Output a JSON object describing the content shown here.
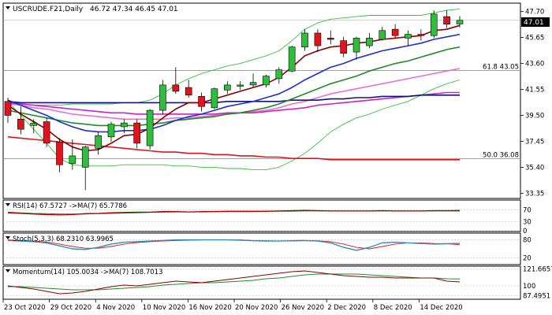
{
  "header": {
    "symbol": "USCRUDE.F21,Daily",
    "ohlc_text": "46.72 47.34 46.45 47.01",
    "last_price": "47.01"
  },
  "colors": {
    "bull": "#2bbf3a",
    "bear": "#e0141e",
    "ma_fast": "#8b0000",
    "ma_blue": "#1c2fd6",
    "ma_green": "#1f8a2a",
    "ma_pink": "#e870d0",
    "ma_navy": "#141478",
    "ma_magenta": "#d020c0",
    "ma_red": "#e0141e",
    "bollinger": "#36c23e",
    "hline": "#808080",
    "rsi": "#b00000",
    "rsi_ma": "#1f8a2a",
    "stoch_main": "#2a8fb8",
    "stoch_signal": "#e0141e",
    "mom": "#8b0000",
    "mom_ma": "#1f8a2a"
  },
  "chart_data": {
    "type": "candlestick",
    "title": "USCRUDE.F21,Daily",
    "y_ticks": [
      "47.70",
      "45.65",
      "43.60",
      "41.55",
      "39.50",
      "37.45",
      "35.40",
      "33.35"
    ],
    "x_ticks": [
      "23 Oct 2020",
      "29 Oct 2020",
      "4 Nov 2020",
      "10 Nov 2020",
      "16 Nov 2020",
      "20 Nov 2020",
      "26 Nov 2020",
      "2 Dec 2020",
      "8 Dec 2020",
      "14 Dec 2020"
    ],
    "ylim": [
      33.0,
      48.3
    ],
    "candles": [
      {
        "o": 40.6,
        "h": 40.9,
        "l": 38.9,
        "c": 39.5
      },
      {
        "o": 39.2,
        "h": 40.2,
        "l": 38.0,
        "c": 38.4
      },
      {
        "o": 38.7,
        "h": 39.2,
        "l": 38.1,
        "c": 38.9
      },
      {
        "o": 39.0,
        "h": 39.3,
        "l": 37.0,
        "c": 37.3
      },
      {
        "o": 37.4,
        "h": 37.7,
        "l": 35.0,
        "c": 35.6
      },
      {
        "o": 35.7,
        "h": 37.6,
        "l": 35.2,
        "c": 36.3
      },
      {
        "o": 35.4,
        "h": 37.1,
        "l": 33.6,
        "c": 37.0
      },
      {
        "o": 36.9,
        "h": 38.2,
        "l": 36.4,
        "c": 37.9
      },
      {
        "o": 37.8,
        "h": 39.0,
        "l": 37.4,
        "c": 38.8
      },
      {
        "o": 38.6,
        "h": 39.2,
        "l": 38.1,
        "c": 38.9
      },
      {
        "o": 38.9,
        "h": 39.2,
        "l": 36.9,
        "c": 37.3
      },
      {
        "o": 37.1,
        "h": 40.0,
        "l": 36.8,
        "c": 39.9
      },
      {
        "o": 39.9,
        "h": 42.3,
        "l": 39.6,
        "c": 41.9
      },
      {
        "o": 41.9,
        "h": 43.3,
        "l": 41.2,
        "c": 41.4
      },
      {
        "o": 41.7,
        "h": 42.3,
        "l": 40.9,
        "c": 41.1
      },
      {
        "o": 41.0,
        "h": 41.3,
        "l": 39.8,
        "c": 40.2
      },
      {
        "o": 40.1,
        "h": 41.7,
        "l": 40.0,
        "c": 41.6
      },
      {
        "o": 41.5,
        "h": 42.2,
        "l": 41.2,
        "c": 41.9
      },
      {
        "o": 41.8,
        "h": 42.2,
        "l": 41.5,
        "c": 41.9
      },
      {
        "o": 41.9,
        "h": 42.8,
        "l": 41.7,
        "c": 42.1
      },
      {
        "o": 41.9,
        "h": 42.7,
        "l": 41.7,
        "c": 42.6
      },
      {
        "o": 42.4,
        "h": 43.3,
        "l": 42.0,
        "c": 43.1
      },
      {
        "o": 43.0,
        "h": 45.0,
        "l": 42.9,
        "c": 44.9
      },
      {
        "o": 44.9,
        "h": 46.3,
        "l": 44.6,
        "c": 46.0
      },
      {
        "o": 46.0,
        "h": 46.3,
        "l": 44.5,
        "c": 45.0
      },
      {
        "o": 45.6,
        "h": 46.2,
        "l": 45.1,
        "c": 45.5
      },
      {
        "o": 45.4,
        "h": 45.7,
        "l": 44.1,
        "c": 44.4
      },
      {
        "o": 44.5,
        "h": 45.7,
        "l": 43.9,
        "c": 45.6
      },
      {
        "o": 45.0,
        "h": 46.0,
        "l": 44.8,
        "c": 45.6
      },
      {
        "o": 45.5,
        "h": 46.5,
        "l": 45.4,
        "c": 46.2
      },
      {
        "o": 46.3,
        "h": 46.7,
        "l": 45.6,
        "c": 45.8
      },
      {
        "o": 45.6,
        "h": 46.2,
        "l": 45.0,
        "c": 45.9
      },
      {
        "o": 45.9,
        "h": 46.3,
        "l": 45.4,
        "c": 45.8
      },
      {
        "o": 45.8,
        "h": 47.8,
        "l": 45.6,
        "c": 47.5
      },
      {
        "o": 47.3,
        "h": 47.8,
        "l": 46.4,
        "c": 46.7
      },
      {
        "o": 46.72,
        "h": 47.34,
        "l": 46.45,
        "c": 47.01
      }
    ],
    "ma_fast": [
      40.3,
      39.6,
      39.0,
      38.4,
      37.6,
      37.0,
      36.7,
      36.8,
      37.3,
      37.9,
      38.0,
      38.5,
      39.3,
      40.0,
      40.5,
      40.5,
      40.8,
      41.1,
      41.4,
      41.7,
      42.0,
      42.5,
      43.3,
      44.2,
      44.6,
      44.9,
      45.0,
      45.2,
      45.3,
      45.5,
      45.6,
      45.7,
      45.8,
      46.2,
      46.3,
      46.6
    ],
    "ma_blue": [
      40.7,
      40.3,
      39.9,
      39.5,
      39.0,
      38.6,
      38.3,
      38.2,
      38.2,
      38.3,
      38.3,
      38.4,
      38.7,
      39.1,
      39.4,
      39.6,
      39.9,
      40.2,
      40.4,
      40.6,
      40.9,
      41.2,
      41.7,
      42.3,
      42.8,
      43.3,
      43.6,
      44.0,
      44.3,
      44.6,
      44.8,
      45.0,
      45.2,
      45.5,
      45.7,
      45.9
    ],
    "ma_green": [
      39.9,
      39.7,
      39.5,
      39.3,
      39.1,
      38.9,
      38.8,
      38.7,
      38.7,
      38.7,
      38.7,
      38.8,
      38.9,
      39.1,
      39.2,
      39.3,
      39.4,
      39.6,
      39.7,
      39.9,
      40.1,
      40.4,
      40.8,
      41.2,
      41.6,
      42.0,
      42.3,
      42.6,
      43.0,
      43.3,
      43.6,
      43.8,
      44.1,
      44.4,
      44.7,
      44.9
    ],
    "ma_pink": [
      40.4,
      40.3,
      40.1,
      40.0,
      39.8,
      39.6,
      39.5,
      39.4,
      39.3,
      39.2,
      39.2,
      39.2,
      39.2,
      39.3,
      39.3,
      39.4,
      39.5,
      39.6,
      39.7,
      39.8,
      39.9,
      40.1,
      40.4,
      40.6,
      40.9,
      41.2,
      41.4,
      41.6,
      41.8,
      42.0,
      42.2,
      42.4,
      42.6,
      42.8,
      43.0,
      43.2
    ],
    "ma_navy": [
      40.6,
      40.5,
      40.5,
      40.5,
      40.5,
      40.5,
      40.5,
      40.5,
      40.5,
      40.5,
      40.5,
      40.5,
      40.5,
      40.5,
      40.5,
      40.5,
      40.5,
      40.6,
      40.6,
      40.6,
      40.6,
      40.6,
      40.7,
      40.7,
      40.7,
      40.8,
      40.8,
      40.9,
      40.9,
      41.0,
      41.0,
      41.0,
      41.1,
      41.1,
      41.1,
      41.1
    ],
    "ma_magenta": [
      40.5,
      40.4,
      40.3,
      40.2,
      40.1,
      40.0,
      39.9,
      39.8,
      39.7,
      39.7,
      39.6,
      39.6,
      39.6,
      39.6,
      39.6,
      39.6,
      39.6,
      39.7,
      39.7,
      39.7,
      39.8,
      39.9,
      40.0,
      40.1,
      40.3,
      40.4,
      40.5,
      40.6,
      40.7,
      40.8,
      40.9,
      41.0,
      41.1,
      41.2,
      41.3,
      41.3
    ],
    "ma_red": [
      37.8,
      37.7,
      37.6,
      37.5,
      37.4,
      37.3,
      37.2,
      37.1,
      37.0,
      36.9,
      36.8,
      36.7,
      36.6,
      36.6,
      36.5,
      36.5,
      36.4,
      36.4,
      36.3,
      36.3,
      36.2,
      36.2,
      36.1,
      36.1,
      36.1,
      36.0,
      36.0,
      36.0,
      36.0,
      36.0,
      36.0,
      36.0,
      36.0,
      36.0,
      36.0,
      36.0
    ],
    "bb_upper": [
      40.4,
      40.4,
      40.3,
      40.3,
      40.3,
      40.4,
      40.4,
      40.4,
      40.4,
      40.5,
      40.5,
      40.7,
      41.2,
      41.9,
      42.4,
      42.8,
      43.1,
      43.4,
      43.6,
      43.9,
      44.2,
      44.6,
      45.4,
      46.3,
      46.8,
      47.1,
      47.2,
      47.3,
      47.4,
      47.4,
      47.4,
      47.4,
      47.4,
      47.6,
      47.8,
      47.9
    ],
    "bb_lower": [
      40.6,
      39.5,
      38.4,
      37.3,
      36.1,
      35.6,
      35.5,
      35.5,
      35.5,
      35.6,
      35.6,
      35.6,
      35.6,
      35.5,
      35.5,
      35.4,
      35.4,
      35.3,
      35.3,
      35.2,
      35.2,
      35.4,
      35.9,
      36.5,
      37.3,
      38.2,
      38.8,
      39.3,
      39.6,
      40.0,
      40.3,
      40.6,
      41.1,
      41.6,
      42.0,
      42.3
    ],
    "hlines": [
      {
        "label": "61.8 43.05",
        "value": 43.05
      },
      {
        "label": "50.0 36.08",
        "value": 36.08
      }
    ],
    "last_price_line": 47.01,
    "rsi": {
      "label": "RSI(14) 67.5727 ->MA(7) 65.7786",
      "ticks": [
        "70",
        "30",
        "0"
      ],
      "ylim": [
        0,
        100
      ],
      "values": [
        60,
        58,
        56,
        54,
        53,
        54,
        57,
        58,
        60,
        61,
        62,
        62,
        64,
        64,
        63,
        64,
        64,
        65,
        65,
        65,
        65,
        66,
        67,
        68,
        67,
        66,
        66,
        66,
        66,
        67,
        66,
        66,
        66,
        67,
        67,
        67.6
      ],
      "ma": [
        62,
        60,
        58,
        57,
        56,
        56,
        56,
        57,
        58,
        59,
        60,
        61,
        62,
        63,
        63,
        63,
        64,
        64,
        64,
        64,
        65,
        65,
        65,
        66,
        66,
        66,
        66,
        66,
        66,
        66,
        66,
        66,
        66,
        66,
        66,
        65.8
      ]
    },
    "stoch": {
      "label": "Stoch(5,3,3) 68.2310 63.9965",
      "ticks": [
        "80",
        "20"
      ],
      "ylim": [
        0,
        100
      ],
      "main": [
        78,
        76,
        74,
        70,
        60,
        50,
        48,
        55,
        66,
        72,
        74,
        76,
        78,
        80,
        80,
        80,
        80,
        80,
        79,
        77,
        76,
        76,
        77,
        78,
        76,
        70,
        55,
        45,
        55,
        70,
        72,
        70,
        68,
        66,
        67,
        68.2
      ],
      "signal": [
        80,
        78,
        76,
        73,
        66,
        58,
        52,
        52,
        58,
        66,
        71,
        74,
        76,
        78,
        79,
        80,
        80,
        80,
        80,
        78,
        77,
        76,
        76,
        77,
        77,
        74,
        66,
        55,
        50,
        58,
        66,
        70,
        70,
        68,
        67,
        64.0
      ]
    },
    "momentum": {
      "label": "Momentum(14) 105.0034 ->MA(7) 108.7013",
      "ticks": [
        "121.6657",
        "100",
        "87.4951"
      ],
      "ylim": [
        84,
        124
      ],
      "values": [
        100,
        98,
        96,
        93,
        90,
        91,
        93,
        96,
        99,
        101,
        100,
        102,
        104,
        106,
        105,
        104,
        106,
        108,
        110,
        112,
        114,
        116,
        118,
        119,
        117,
        115,
        113,
        112,
        111,
        111,
        110,
        110,
        110,
        110,
        106,
        105
      ],
      "ma": [
        99,
        99,
        98,
        97,
        96,
        95,
        95,
        95,
        96,
        97,
        98,
        99,
        101,
        102,
        103,
        104,
        104,
        105,
        106,
        107,
        109,
        110,
        112,
        114,
        115,
        115,
        115,
        115,
        114,
        113,
        112,
        111,
        110,
        110,
        109,
        108.7
      ]
    }
  }
}
